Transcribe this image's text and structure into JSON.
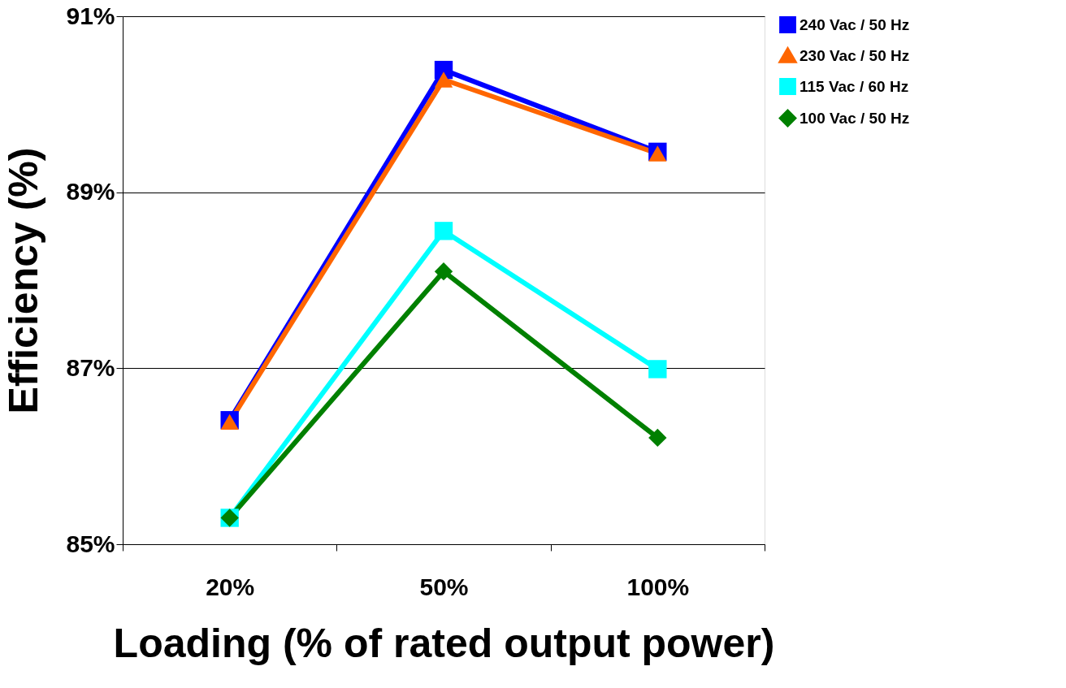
{
  "chart_data": {
    "type": "line",
    "xlabel": "Loading (% of rated output power)",
    "ylabel": "Efficiency (%)",
    "categories": [
      "20%",
      "50%",
      "100%"
    ],
    "series": [
      {
        "name": "240 Vac / 50 Hz",
        "color": "#0000ff",
        "marker": "square",
        "values": [
          86.41,
          90.39,
          89.46
        ]
      },
      {
        "name": "230 Vac / 50 Hz",
        "color": "#ff6600",
        "marker": "triangle",
        "values": [
          86.39,
          90.28,
          89.44
        ]
      },
      {
        "name": "115 Vac / 60 Hz",
        "color": "#00ffff",
        "marker": "square",
        "values": [
          85.3,
          88.56,
          86.99
        ]
      },
      {
        "name": "100 Vac / 50 Hz",
        "color": "#008000",
        "marker": "diamond",
        "values": [
          85.3,
          88.1,
          86.21
        ]
      }
    ],
    "ylim": [
      85,
      91
    ],
    "yticks": [
      {
        "value": 85,
        "label": "85%"
      },
      {
        "value": 87,
        "label": "87%"
      },
      {
        "value": 89,
        "label": "89%"
      },
      {
        "value": 91,
        "label": "91%"
      }
    ],
    "grid": "y",
    "legend": "right",
    "line_style": "solid"
  }
}
